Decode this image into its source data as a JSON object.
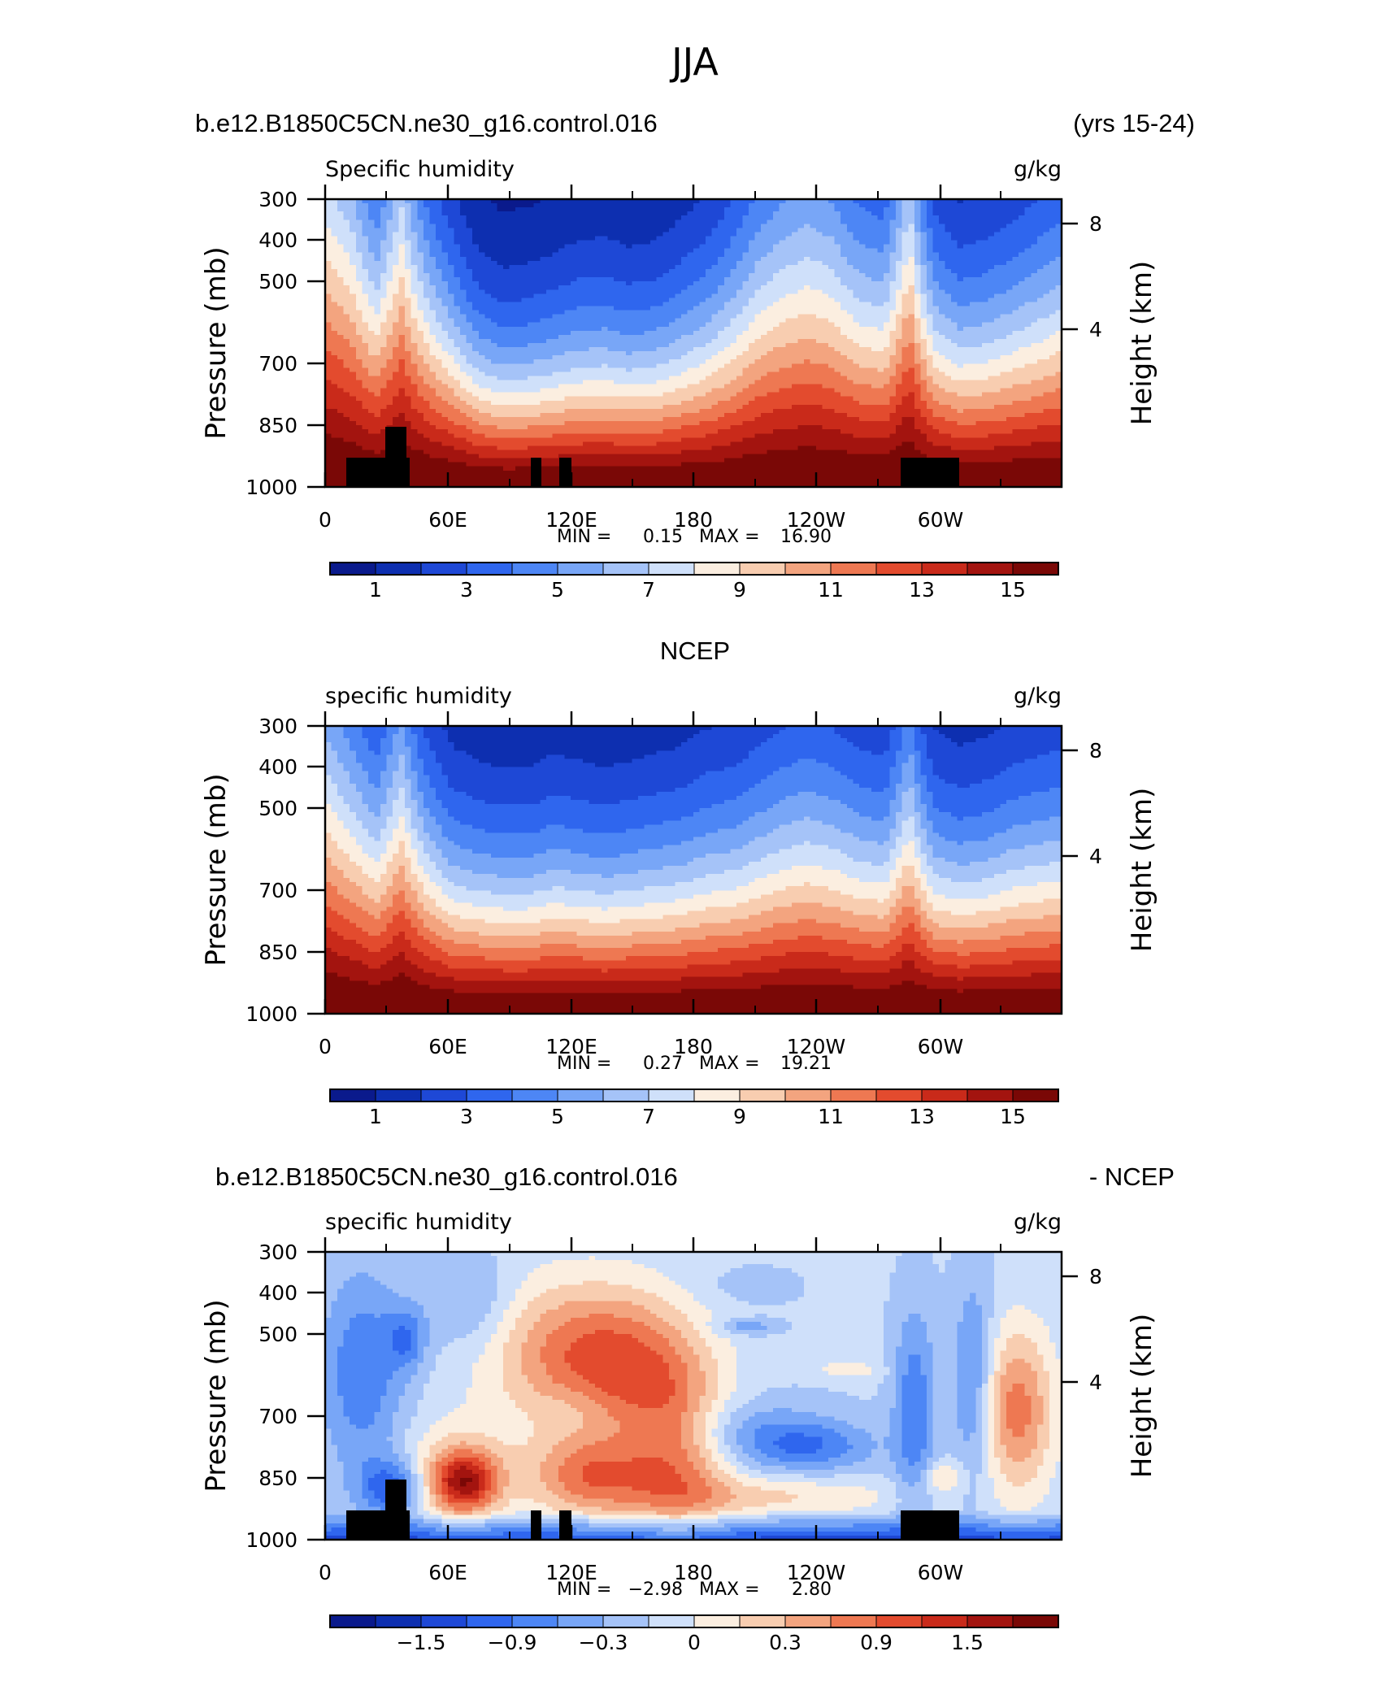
{
  "title": "JJA",
  "colors": {
    "sequential": [
      "#0a1a8c",
      "#0d2fb0",
      "#1e48d6",
      "#2f66ee",
      "#4d86f5",
      "#78a6f7",
      "#a5c3f8",
      "#cfe0fa",
      "#fbeee0",
      "#f8cdb0",
      "#f3a47f",
      "#ee7852",
      "#e34b2e",
      "#c92a1a",
      "#a3140f",
      "#7a0806"
    ],
    "diverging": [
      "#0a1a8c",
      "#0d2fb0",
      "#1e48d6",
      "#2f66ee",
      "#4d86f5",
      "#78a6f7",
      "#a5c3f8",
      "#cfe0fa",
      "#fbeee0",
      "#f8cdb0",
      "#f3a47f",
      "#ee7852",
      "#e34b2e",
      "#c92a1a",
      "#a3140f",
      "#7a0806"
    ]
  },
  "chart_data": [
    {
      "type": "heatmap",
      "case_title": "b.e12.B1850C5CN.ne30_g16.control.016",
      "case_suffix": "(yrs 15-24)",
      "variable": "Specific humidity",
      "units": "g/kg",
      "ylabel": "Pressure (mb)",
      "y2label": "Height (km)",
      "y_ticks": [
        "300",
        "400",
        "500",
        "700",
        "850",
        "1000"
      ],
      "y2_ticks": [
        "8",
        "4"
      ],
      "x_ticks": [
        "0",
        "60E",
        "120E",
        "180",
        "120W",
        "60W"
      ],
      "min_label": "MIN =",
      "min_value": "0.15",
      "max_label": "MAX =",
      "max_value": "16.90",
      "colorbar_labels": [
        "1",
        "3",
        "5",
        "7",
        "9",
        "11",
        "13",
        "15"
      ],
      "scale": "sequential",
      "masked": true,
      "profile": [
        8.6,
        8.2,
        7.2,
        8.4,
        7.0,
        5.8,
        4.2,
        3.4,
        3.6,
        4.0,
        4.4,
        4.5,
        4.2,
        4.4,
        5.0,
        5.6,
        6.4,
        7.2,
        7.6,
        7.8,
        7.6,
        7.0,
        6.8,
        8.4,
        6.2,
        5.4,
        5.6,
        6.0,
        6.4,
        6.8
      ]
    },
    {
      "type": "heatmap",
      "case_title": "NCEP",
      "variable": "specific humidity",
      "units": "g/kg",
      "ylabel": "Pressure (mb)",
      "y2label": "Height (km)",
      "y_ticks": [
        "300",
        "400",
        "500",
        "700",
        "850",
        "1000"
      ],
      "y2_ticks": [
        "8",
        "4"
      ],
      "x_ticks": [
        "0",
        "60E",
        "120E",
        "180",
        "120W",
        "60W"
      ],
      "min_label": "MIN =",
      "min_value": "0.27",
      "max_label": "MAX =",
      "max_value": "19.21",
      "colorbar_labels": [
        "1",
        "3",
        "5",
        "7",
        "9",
        "11",
        "13",
        "15"
      ],
      "scale": "sequential",
      "masked": false,
      "profile": [
        8.0,
        7.4,
        6.6,
        7.8,
        6.2,
        5.0,
        4.6,
        4.4,
        4.4,
        4.8,
        4.6,
        4.4,
        4.6,
        4.8,
        5.0,
        5.4,
        5.6,
        6.0,
        6.4,
        6.6,
        6.4,
        6.0,
        5.8,
        7.4,
        5.4,
        5.0,
        5.2,
        5.6,
        5.8,
        6.0
      ]
    },
    {
      "type": "heatmap",
      "case_title": "b.e12.B1850C5CN.ne30_g16.control.016",
      "case_suffix": "- NCEP",
      "variable": "specific humidity",
      "units": "g/kg",
      "ylabel": "Pressure (mb)",
      "y2label": "Height (km)",
      "y_ticks": [
        "300",
        "400",
        "500",
        "700",
        "850",
        "1000"
      ],
      "y2_ticks": [
        "8",
        "4"
      ],
      "x_ticks": [
        "0",
        "60E",
        "120E",
        "180",
        "120W",
        "60W"
      ],
      "min_label": "MIN =",
      "min_value": "−2.98",
      "max_label": "MAX =",
      "max_value": "2.80",
      "colorbar_labels": [
        "−1.5",
        "−0.9",
        "−0.3",
        "0",
        "0.3",
        "0.9",
        "1.5"
      ],
      "scale": "diverging",
      "masked": true
    }
  ]
}
